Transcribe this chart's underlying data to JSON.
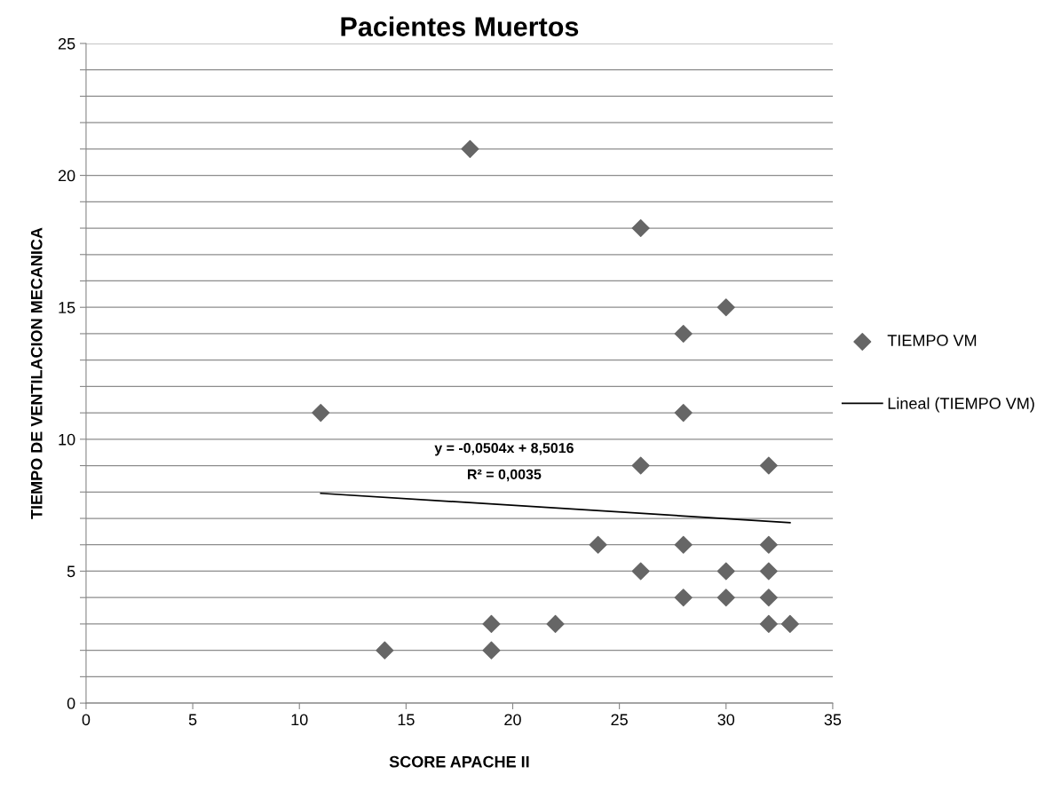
{
  "chart_data": {
    "type": "scatter",
    "title": "Pacientes Muertos",
    "xlabel": "SCORE APACHE II",
    "ylabel": "TIEMPO DE VENTILACION MECANICA",
    "xlim": [
      0,
      35
    ],
    "xticks": [
      0,
      5,
      10,
      15,
      20,
      25,
      30,
      35
    ],
    "ylim": [
      0,
      25
    ],
    "yticks": [
      0,
      {
        "value": 1,
        "label": null
      },
      {
        "value": 2,
        "label": null
      },
      {
        "value": 3,
        "label": null
      },
      {
        "value": 4,
        "label": null
      },
      5,
      {
        "value": 6,
        "label": null
      },
      {
        "value": 7,
        "label": null
      },
      {
        "value": 8,
        "label": null
      },
      {
        "value": 9,
        "label": null
      },
      10,
      {
        "value": 11,
        "label": null
      },
      {
        "value": 12,
        "label": null
      },
      {
        "value": 13,
        "label": null
      },
      {
        "value": 14,
        "label": null
      },
      15,
      {
        "value": 16,
        "label": null
      },
      {
        "value": 17,
        "label": null
      },
      {
        "value": 18,
        "label": null
      },
      {
        "value": 19,
        "label": null
      },
      20,
      {
        "value": 21,
        "label": null
      },
      {
        "value": 22,
        "label": null
      },
      {
        "value": 23,
        "label": null
      },
      {
        "value": 24,
        "label": null
      },
      25
    ],
    "grid": "y",
    "legend": "right",
    "series": [
      {
        "name": "TIEMPO VM",
        "color": "#666666",
        "marker": "diamond",
        "x": [
          18,
          26,
          30,
          28,
          11,
          28,
          26,
          32,
          24,
          28,
          32,
          26,
          30,
          32,
          28,
          30,
          32,
          22,
          19,
          32,
          33,
          14,
          19
        ],
        "values": [
          21,
          18,
          15,
          14,
          11,
          11,
          9,
          9,
          6,
          6,
          6,
          5,
          5,
          5,
          4,
          4,
          4,
          3,
          3,
          3,
          3,
          2,
          2
        ]
      },
      {
        "name": "Lineal (TIEMPO VM)",
        "type": "line",
        "color": "#000000",
        "marker": "none",
        "x": [
          11,
          33
        ],
        "values": [
          7.95,
          6.84
        ]
      }
    ],
    "annotations": [
      "y = -0,0504x + 8,5016",
      "R² = 0,0035"
    ]
  }
}
